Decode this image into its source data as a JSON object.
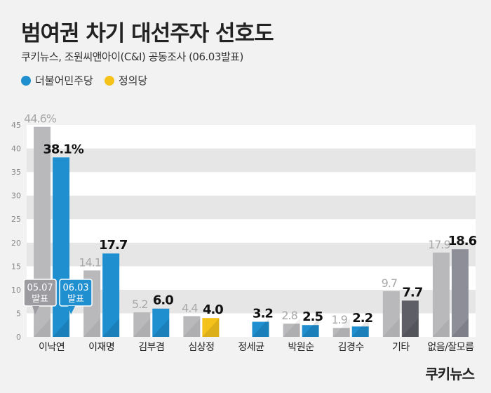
{
  "title": "범여권 차기 대선주자 선호도",
  "subtitle": "쿠키뉴스, 조원씨앤아이(C&I) 공동조사 (06.03발표)",
  "legend": [
    {
      "label": "더불어민주당",
      "color": "#1f8fcf"
    },
    {
      "label": "정의당",
      "color": "#f5c21a"
    }
  ],
  "logo": "쿠키뉴스",
  "chart_data": {
    "type": "bar",
    "categories": [
      "이낙연",
      "이재명",
      "김부겸",
      "심상정",
      "정세균",
      "박원순",
      "김경수",
      "기타",
      "없음/잘모름"
    ],
    "series": [
      {
        "values": [
          44.6,
          14.1,
          5.2,
          4.4,
          null,
          2.8,
          1.9,
          9.7,
          17.9
        ]
      },
      {
        "values": [
          38.1,
          17.7,
          6.0,
          4.0,
          3.2,
          2.5,
          2.2,
          7.7,
          18.6
        ]
      }
    ],
    "prev_labels": [
      "44.6%",
      "14.1",
      "5.2",
      "4.4",
      "",
      "2.8",
      "1.9",
      "9.7",
      "17.9"
    ],
    "curr_labels": [
      "38.1%",
      "17.7",
      "6.0",
      "4.0",
      "3.2",
      "2.5",
      "2.2",
      "7.7",
      "18.6"
    ],
    "bar_colors": [
      "#1f8fcf",
      "#1f8fcf",
      "#1f8fcf",
      "#f5c21a",
      "#1f8fcf",
      "#1f8fcf",
      "#1f8fcf",
      "#5e5e66",
      "#8e8e99"
    ],
    "prev_color": "#b9b9bc",
    "yticks": [
      0,
      5,
      10,
      15,
      20,
      25,
      30,
      35,
      40,
      45
    ],
    "ylim": [
      0,
      45
    ],
    "callouts": [
      {
        "date": "05.07",
        "label": "발표"
      },
      {
        "date": "06.03",
        "label": "발표"
      }
    ]
  }
}
